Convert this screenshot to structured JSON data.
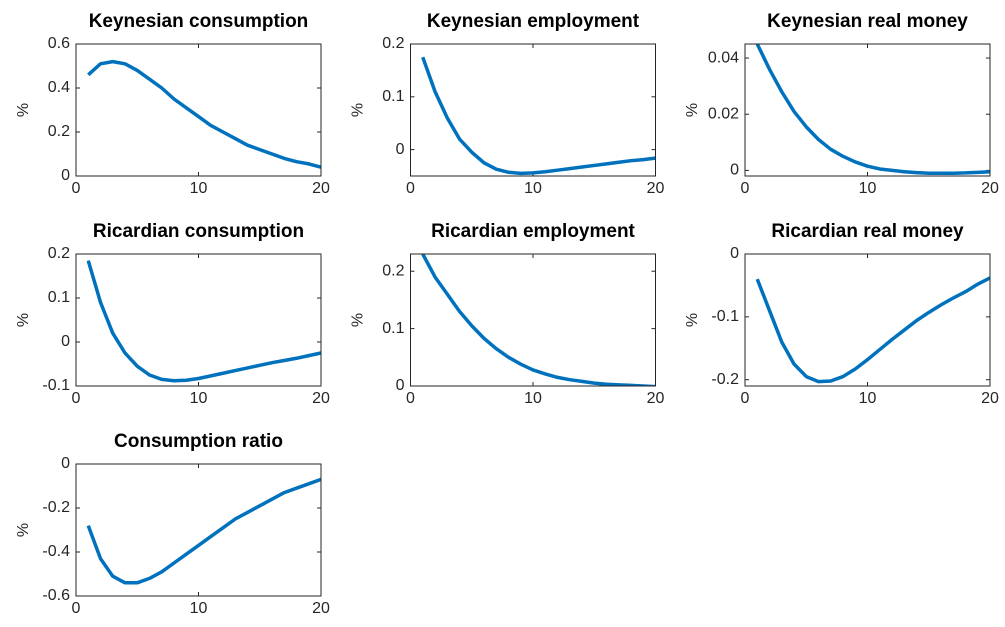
{
  "chart_data": [
    {
      "type": "line",
      "title": "Keynesian consumption",
      "ylabel": "%",
      "color": "#0072bd",
      "x": [
        1,
        2,
        3,
        4,
        5,
        6,
        7,
        8,
        9,
        10,
        11,
        12,
        13,
        14,
        15,
        16,
        17,
        18,
        19,
        20
      ],
      "values": [
        0.46,
        0.51,
        0.52,
        0.51,
        0.48,
        0.44,
        0.4,
        0.35,
        0.31,
        0.27,
        0.23,
        0.2,
        0.17,
        0.14,
        0.12,
        0.1,
        0.08,
        0.065,
        0.055,
        0.04
      ],
      "xlim": [
        0,
        20
      ],
      "xticks": [
        0,
        10,
        20
      ],
      "ylim": [
        0,
        0.6
      ],
      "yticks": [
        0,
        0.2,
        0.4,
        0.6
      ]
    },
    {
      "type": "line",
      "title": "Keynesian employment",
      "ylabel": "%",
      "color": "#0072bd",
      "x": [
        1,
        2,
        3,
        4,
        5,
        6,
        7,
        8,
        9,
        10,
        11,
        12,
        13,
        14,
        15,
        16,
        17,
        18,
        19,
        20
      ],
      "values": [
        0.175,
        0.11,
        0.06,
        0.02,
        -0.005,
        -0.025,
        -0.037,
        -0.043,
        -0.045,
        -0.044,
        -0.042,
        -0.039,
        -0.036,
        -0.033,
        -0.03,
        -0.027,
        -0.024,
        -0.021,
        -0.019,
        -0.016
      ],
      "xlim": [
        0,
        20
      ],
      "xticks": [
        0,
        10,
        20
      ],
      "ylim": [
        -0.05,
        0.2
      ],
      "yticks": [
        0,
        0.1,
        0.2
      ]
    },
    {
      "type": "line",
      "title": "Keynesian real money",
      "ylabel": "%",
      "color": "#0072bd",
      "x": [
        1,
        2,
        3,
        4,
        5,
        6,
        7,
        8,
        9,
        10,
        11,
        12,
        13,
        14,
        15,
        16,
        17,
        18,
        19,
        20
      ],
      "values": [
        0.045,
        0.036,
        0.028,
        0.021,
        0.0155,
        0.011,
        0.0075,
        0.005,
        0.003,
        0.0015,
        0.0005,
        0,
        -0.0005,
        -0.0008,
        -0.001,
        -0.001,
        -0.001,
        -0.0009,
        -0.0007,
        -0.0005
      ],
      "xlim": [
        0,
        20
      ],
      "xticks": [
        0,
        10,
        20
      ],
      "ylim": [
        -0.002,
        0.045
      ],
      "yticks": [
        0,
        0.02,
        0.04
      ]
    },
    {
      "type": "line",
      "title": "Ricardian consumption",
      "ylabel": "%",
      "color": "#0072bd",
      "x": [
        1,
        2,
        3,
        4,
        5,
        6,
        7,
        8,
        9,
        10,
        11,
        12,
        13,
        14,
        15,
        16,
        17,
        18,
        19,
        20
      ],
      "values": [
        0.185,
        0.09,
        0.02,
        -0.025,
        -0.055,
        -0.075,
        -0.085,
        -0.088,
        -0.087,
        -0.083,
        -0.077,
        -0.071,
        -0.065,
        -0.059,
        -0.053,
        -0.047,
        -0.042,
        -0.037,
        -0.031,
        -0.025
      ],
      "xlim": [
        0,
        20
      ],
      "xticks": [
        0,
        10,
        20
      ],
      "ylim": [
        -0.1,
        0.2
      ],
      "yticks": [
        -0.1,
        0,
        0.1,
        0.2
      ]
    },
    {
      "type": "line",
      "title": "Ricardian employment",
      "ylabel": "%",
      "color": "#0072bd",
      "x": [
        1,
        2,
        3,
        4,
        5,
        6,
        7,
        8,
        9,
        10,
        11,
        12,
        13,
        14,
        15,
        16,
        17,
        18,
        19,
        20
      ],
      "values": [
        0.23,
        0.19,
        0.16,
        0.13,
        0.105,
        0.083,
        0.065,
        0.05,
        0.038,
        0.028,
        0.021,
        0.015,
        0.011,
        0.008,
        0.005,
        0.003,
        0.002,
        0.001,
        0,
        -0.001
      ],
      "xlim": [
        0,
        20
      ],
      "xticks": [
        0,
        10,
        20
      ],
      "ylim": [
        0,
        0.23
      ],
      "yticks": [
        0,
        0.1,
        0.2
      ]
    },
    {
      "type": "line",
      "title": "Ricardian real money",
      "ylabel": "%",
      "color": "#0072bd",
      "x": [
        1,
        2,
        3,
        4,
        5,
        6,
        7,
        8,
        9,
        10,
        11,
        12,
        13,
        14,
        15,
        16,
        17,
        18,
        19,
        20
      ],
      "values": [
        -0.04,
        -0.09,
        -0.14,
        -0.175,
        -0.195,
        -0.203,
        -0.202,
        -0.195,
        -0.183,
        -0.168,
        -0.152,
        -0.136,
        -0.121,
        -0.106,
        -0.093,
        -0.081,
        -0.07,
        -0.06,
        -0.048,
        -0.038
      ],
      "xlim": [
        0,
        20
      ],
      "xticks": [
        0,
        10,
        20
      ],
      "ylim": [
        -0.21,
        0
      ],
      "yticks": [
        -0.2,
        -0.1,
        0
      ]
    },
    {
      "type": "line",
      "title": "Consumption ratio",
      "ylabel": "%",
      "color": "#0072bd",
      "x": [
        1,
        2,
        3,
        4,
        5,
        6,
        7,
        8,
        9,
        10,
        11,
        12,
        13,
        14,
        15,
        16,
        17,
        18,
        19,
        20
      ],
      "values": [
        -0.28,
        -0.43,
        -0.51,
        -0.54,
        -0.54,
        -0.52,
        -0.49,
        -0.45,
        -0.41,
        -0.37,
        -0.33,
        -0.29,
        -0.25,
        -0.22,
        -0.19,
        -0.16,
        -0.13,
        -0.11,
        -0.09,
        -0.07
      ],
      "xlim": [
        0,
        20
      ],
      "xticks": [
        0,
        10,
        20
      ],
      "ylim": [
        -0.6,
        0
      ],
      "yticks": [
        -0.6,
        -0.4,
        -0.2,
        0
      ]
    }
  ]
}
